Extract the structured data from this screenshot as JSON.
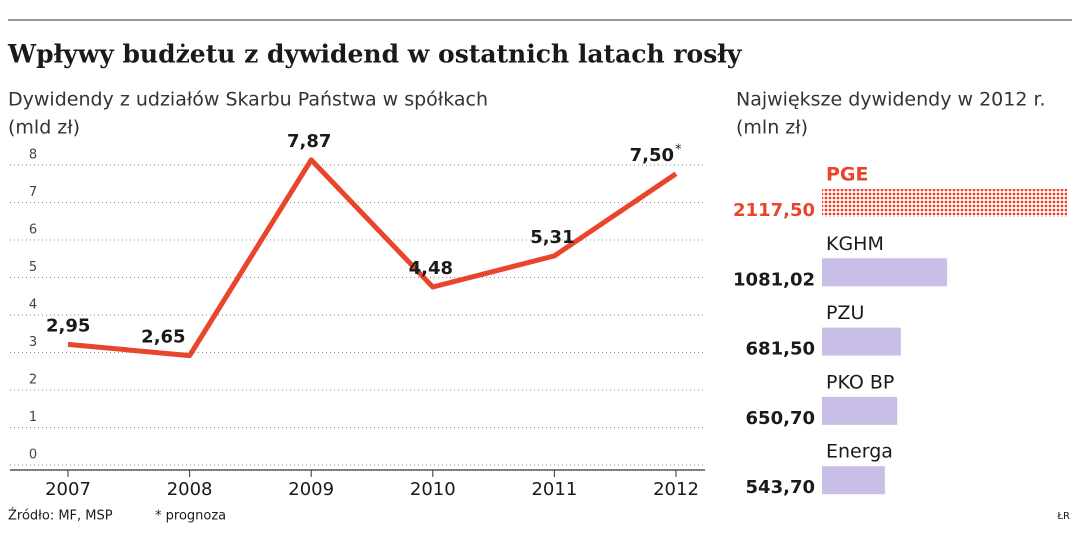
{
  "title": "Wpływy budżetu z dywidend w ostatnich latach rosły",
  "source": "Źródło: MF, MSP",
  "footnote": "* prognoza",
  "credit": "ŁR",
  "chart_data": [
    {
      "type": "line",
      "subtitle": [
        "Dywidendy z udziałów Skarbu Państwa w spółkach",
        "(mld zł)"
      ],
      "categories": [
        "2007",
        "2008",
        "2009",
        "2010",
        "2011",
        "2012"
      ],
      "values": [
        2.95,
        2.65,
        7.87,
        4.48,
        5.31,
        7.5
      ],
      "value_labels": [
        "2,95",
        "2,65",
        "7,87",
        "4,48",
        "5,31",
        "7,50"
      ],
      "forecast_marker": "*",
      "color": "#e8452c",
      "ylim": [
        0,
        8
      ],
      "yticks": [
        0,
        1,
        2,
        3,
        4,
        5,
        6,
        7,
        8
      ],
      "grid": true
    },
    {
      "type": "hbar",
      "subtitle": [
        "Największe dywidendy w 2012 r.",
        "(mln zł)"
      ],
      "categories": [
        "PGE",
        "KGHM",
        "PZU",
        "PKO BP",
        "Energa"
      ],
      "values": [
        2117.5,
        1081.02,
        681.5,
        650.7,
        543.7
      ],
      "value_labels": [
        "2117,50",
        "1081,02",
        "681,50",
        "650,70",
        "543,70"
      ],
      "colors": [
        "#e8452c",
        "#c9bfe6",
        "#c9bfe6",
        "#c9bfe6",
        "#c9bfe6"
      ]
    }
  ]
}
